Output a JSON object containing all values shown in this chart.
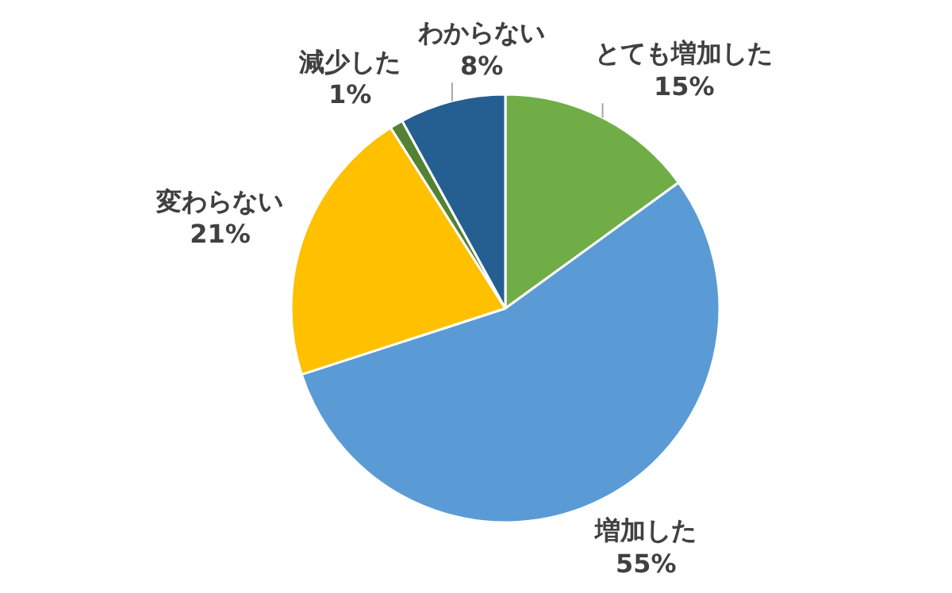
{
  "chart_data": {
    "type": "pie",
    "categories": [
      "とても増加した",
      "増加した",
      "変わらない",
      "減少した",
      "わからない"
    ],
    "values": [
      15,
      55,
      21,
      1,
      8
    ],
    "value_labels": [
      "15%",
      "55%",
      "21%",
      "1%",
      "8%"
    ],
    "colors": [
      "#70ad47",
      "#5b9bd5",
      "#ffc000",
      "#548235",
      "#255e91"
    ]
  }
}
